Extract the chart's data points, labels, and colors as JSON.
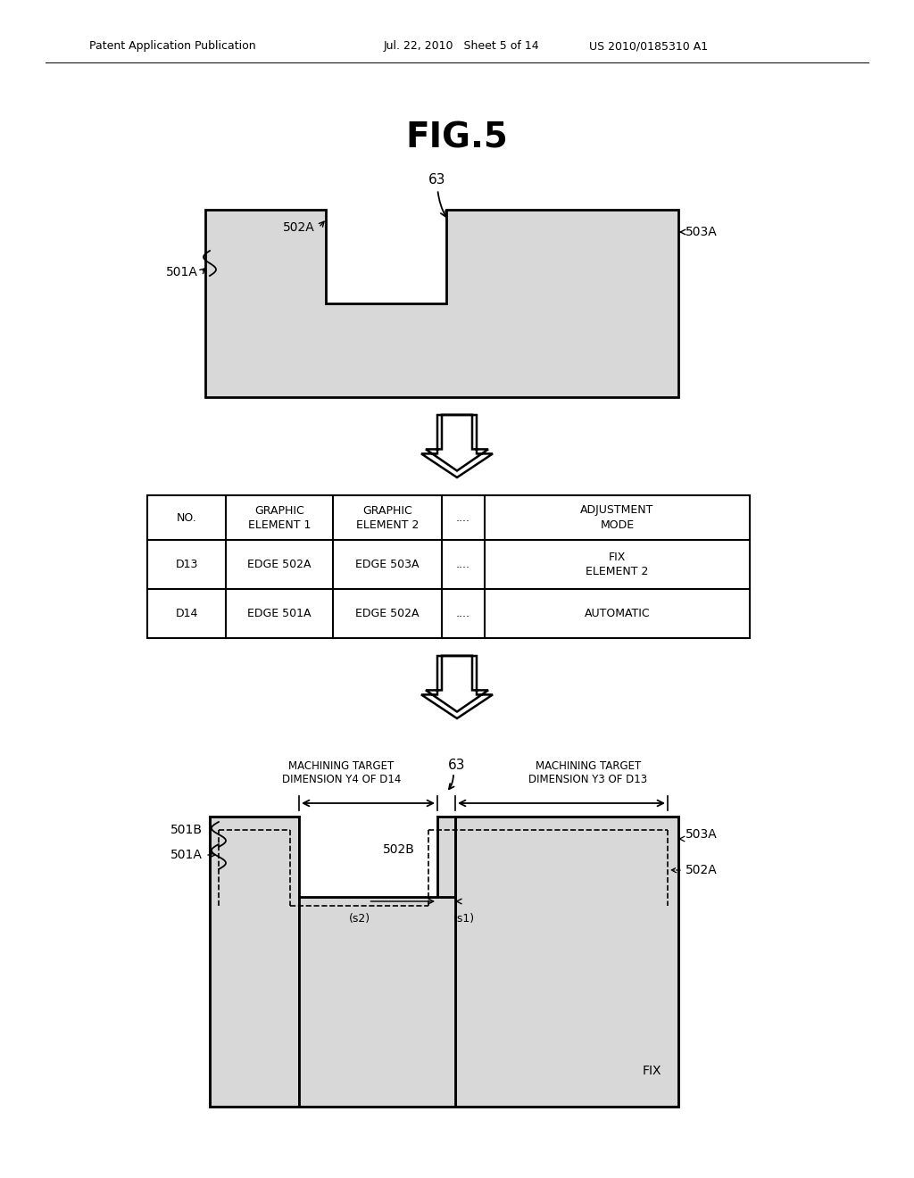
{
  "title": "FIG.5",
  "header_left": "Patent Application Publication",
  "header_mid": "Jul. 22, 2010   Sheet 5 of 14",
  "header_right": "US 2010/0185310 A1",
  "bg_color": "#ffffff",
  "fill_color": "#d8d8d8",
  "table": {
    "col_headers": [
      "NO.",
      "GRAPHIC\nELEMENT 1",
      "GRAPHIC\nELEMENT 2",
      "....",
      "ADJUSTMENT\nMODE"
    ],
    "rows": [
      [
        "D13",
        "EDGE 502A",
        "EDGE 503A",
        "....",
        "FIX\nELEMENT 2"
      ],
      [
        "D14",
        "EDGE 501A",
        "EDGE 502A",
        "....",
        "AUTOMATIC"
      ]
    ]
  }
}
